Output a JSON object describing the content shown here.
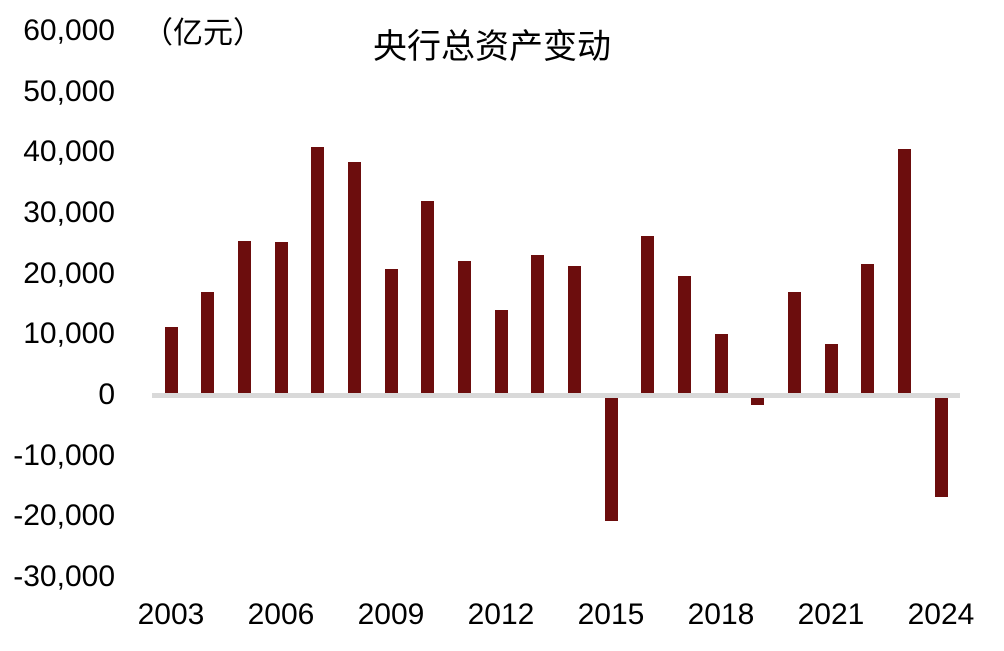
{
  "colors": {
    "bar": "#6c0d0d",
    "axis_line": "#d9d9d9",
    "text": "#000000",
    "background": "#ffffff"
  },
  "chart_data": {
    "type": "bar",
    "title": "央行总资产变动",
    "ylabel": "（亿元）",
    "xlabel": "",
    "categories": [
      2003,
      2004,
      2005,
      2006,
      2007,
      2008,
      2009,
      2010,
      2011,
      2012,
      2013,
      2014,
      2015,
      2016,
      2017,
      2018,
      2019,
      2020,
      2021,
      2022,
      2023,
      2024
    ],
    "values": [
      10900,
      16600,
      25000,
      24900,
      40600,
      38100,
      20500,
      31700,
      21800,
      13600,
      22700,
      21000,
      -20300,
      25900,
      19300,
      9700,
      -1200,
      16700,
      8100,
      21200,
      40300,
      -16400
    ],
    "ylim": [
      -30000,
      60000
    ],
    "ytick_step": 10000,
    "yticks": [
      60000,
      50000,
      40000,
      30000,
      20000,
      10000,
      0,
      -10000,
      -20000,
      -30000
    ],
    "ytick_labels": [
      "60,000",
      "50,000",
      "40,000",
      "30,000",
      "20,000",
      "10,000",
      "0",
      "-10,000",
      "-20,000",
      "-30,000"
    ],
    "xtick_labels": [
      "2003",
      "2006",
      "2009",
      "2012",
      "2015",
      "2018",
      "2021",
      "2024"
    ],
    "grid": false,
    "legend": false,
    "bar_color": "#6c0d0d",
    "zero_axis_color": "#d9d9d9"
  }
}
